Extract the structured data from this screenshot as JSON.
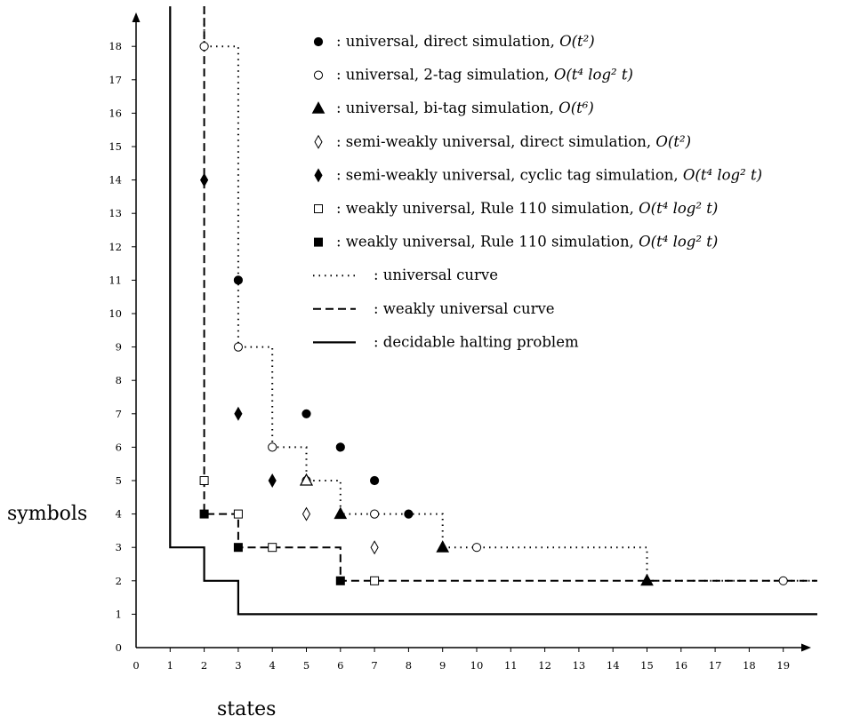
{
  "chart_data": {
    "type": "scatter",
    "title": "",
    "xlabel": "states",
    "ylabel": "symbols",
    "xlim": [
      0,
      20
    ],
    "ylim": [
      0,
      19
    ],
    "xticks": [
      "0",
      "1",
      "2",
      "3",
      "4",
      "5",
      "6",
      "7",
      "8",
      "9",
      "10",
      "11",
      "12",
      "13",
      "14",
      "15",
      "16",
      "17",
      "18",
      "19"
    ],
    "yticks": [
      "0",
      "1",
      "2",
      "3",
      "4",
      "5",
      "6",
      "7",
      "8",
      "9",
      "10",
      "11",
      "12",
      "13",
      "14",
      "15",
      "16",
      "17",
      "18"
    ],
    "grid": false,
    "legend_position": "top-right",
    "series": [
      {
        "key": "dot",
        "marker": "circle-filled",
        "label": ": universal, direct simulation, ",
        "complexity": "O(t²)",
        "points": [
          [
            3,
            11
          ],
          [
            5,
            7
          ],
          [
            6,
            6
          ],
          [
            7,
            5
          ],
          [
            8,
            4
          ]
        ]
      },
      {
        "key": "circ",
        "marker": "circle-open",
        "label": ": universal, 2-tag simulation, ",
        "complexity": "O(t⁴ log² t)",
        "points": [
          [
            2,
            18
          ],
          [
            3,
            9
          ],
          [
            4,
            6
          ],
          [
            5,
            5
          ],
          [
            7,
            4
          ],
          [
            10,
            3
          ],
          [
            19,
            2
          ]
        ]
      },
      {
        "key": "tri",
        "marker": "triangle-filled",
        "label": ": universal, bi-tag simulation, ",
        "complexity": "O(t⁶)",
        "points": [
          [
            5,
            5
          ],
          [
            6,
            4
          ],
          [
            9,
            3
          ],
          [
            15,
            2
          ]
        ]
      },
      {
        "key": "odia",
        "marker": "diamond-open",
        "label": ": semi-weakly universal, direct simulation, ",
        "complexity": "O(t²)",
        "points": [
          [
            5,
            4
          ],
          [
            7,
            3
          ]
        ]
      },
      {
        "key": "fdia",
        "marker": "diamond-filled",
        "label": ": semi-weakly universal, cyclic tag simulation, ",
        "complexity": "O(t⁴ log² t)",
        "points": [
          [
            2,
            14
          ],
          [
            3,
            7
          ],
          [
            4,
            5
          ]
        ]
      },
      {
        "key": "osq",
        "marker": "square-open",
        "label": ": weakly universal, Rule 110 simulation, ",
        "complexity": "O(t⁴ log² t)",
        "points": [
          [
            2,
            5
          ],
          [
            3,
            4
          ],
          [
            4,
            3
          ],
          [
            7,
            2
          ]
        ]
      },
      {
        "key": "fsq",
        "marker": "square-filled",
        "label": ": weakly universal, Rule 110 simulation, ",
        "complexity": "O(t⁴ log² t)",
        "points": [
          [
            2,
            4
          ],
          [
            3,
            3
          ],
          [
            6,
            2
          ]
        ]
      }
    ],
    "curves": [
      {
        "key": "universal",
        "style": "dotted",
        "label": ": universal curve",
        "points": [
          [
            2,
            19.2
          ],
          [
            2,
            18
          ],
          [
            3,
            18
          ],
          [
            3,
            9
          ],
          [
            4,
            9
          ],
          [
            4,
            6
          ],
          [
            5,
            6
          ],
          [
            5,
            5
          ],
          [
            6,
            5
          ],
          [
            6,
            4
          ],
          [
            9,
            4
          ],
          [
            9,
            3
          ],
          [
            15,
            3
          ],
          [
            15,
            2
          ],
          [
            20,
            2
          ]
        ]
      },
      {
        "key": "weakly",
        "style": "dashed",
        "label": ": weakly universal curve",
        "points": [
          [
            2,
            19.2
          ],
          [
            2,
            4
          ],
          [
            3,
            4
          ],
          [
            3,
            3
          ],
          [
            6,
            3
          ],
          [
            6,
            2
          ],
          [
            20,
            2
          ]
        ]
      },
      {
        "key": "halting",
        "style": "solid",
        "label": ": decidable halting problem",
        "points": [
          [
            1,
            19.2
          ],
          [
            1,
            3
          ],
          [
            2,
            3
          ],
          [
            2,
            2
          ],
          [
            3,
            2
          ],
          [
            3,
            1
          ],
          [
            20,
            1
          ]
        ]
      }
    ]
  }
}
